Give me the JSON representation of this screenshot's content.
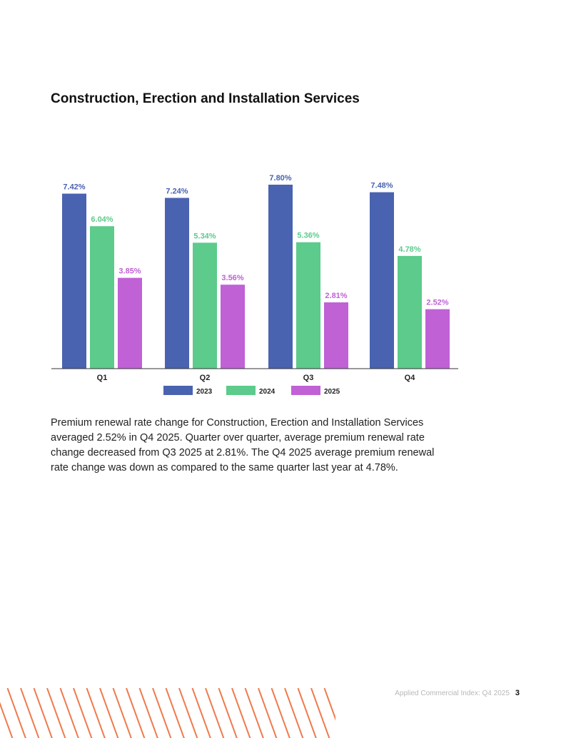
{
  "page": {
    "title": "Construction, Erection and Installation Services",
    "summary": "Premium renewal rate change for Construction, Erection and Installation Services averaged 2.52% in Q4 2025. Quarter over quarter, average premium renewal rate change decreased from Q3 2025 at 2.81%. The Q4 2025 average premium renewal rate change was down as compared to the same quarter last year at 4.78%.",
    "footer_text": "Applied Commercial Index: Q4 2025",
    "page_number": "3"
  },
  "colors": {
    "series_2023": "#4a63b0",
    "series_2024": "#5ccb8b",
    "series_2025": "#c061d6",
    "stripe": "#f07a4c"
  },
  "chart_data": {
    "type": "bar",
    "title": "Construction, Erection and Installation Services",
    "categories": [
      "Q1",
      "Q2",
      "Q3",
      "Q4"
    ],
    "series": [
      {
        "name": "2023",
        "values": [
          7.42,
          7.24,
          7.8,
          7.48
        ],
        "labels": [
          "7.42%",
          "7.24%",
          "7.80%",
          "7.48%"
        ],
        "color": "#4a63b0"
      },
      {
        "name": "2024",
        "values": [
          6.04,
          5.34,
          5.36,
          4.78
        ],
        "labels": [
          "6.04%",
          "5.34%",
          "5.36%",
          "4.78%"
        ],
        "color": "#5ccb8b"
      },
      {
        "name": "2025",
        "values": [
          3.85,
          3.56,
          2.81,
          2.52
        ],
        "labels": [
          "3.85%",
          "3.56%",
          "2.81%",
          "2.52%"
        ],
        "color": "#c061d6"
      }
    ],
    "ylim": [
      0,
      7.8
    ],
    "legend": "bottom",
    "grid": false,
    "xlabel": "",
    "ylabel": ""
  }
}
